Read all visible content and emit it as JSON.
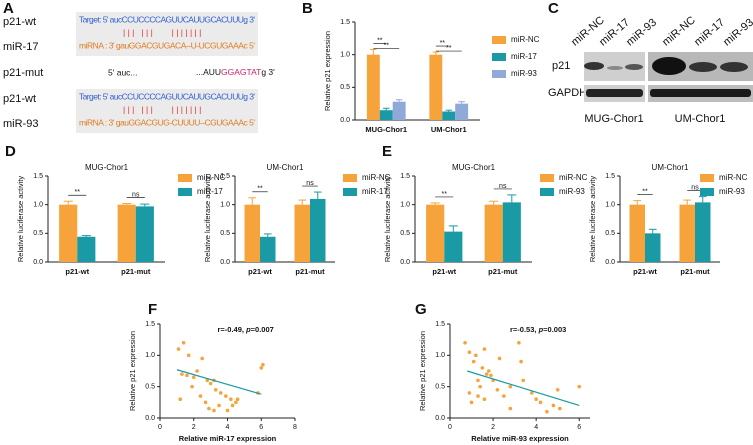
{
  "panel_labels": [
    "A",
    "B",
    "C",
    "D",
    "E",
    "F",
    "G"
  ],
  "alignment": {
    "rows": [
      {
        "label": "p21-wt",
        "text": "Target: 5' aucCCUCCCCAGUUCAUUGCACUUUg 3'"
      },
      {
        "text": "| | |   | | |        | | | | | | |"
      },
      {
        "label": "miR-17",
        "text": "miRNA : 3' gauGGACGUGACA--U-UCGUGAAAc 5'"
      },
      {
        "label": "p21-mut",
        "parts": [
          "5' auc...",
          "...AUU",
          "GGAGTAT",
          "g 3'"
        ]
      },
      {
        "label": "p21-wt",
        "text": "Target: 5' aucCCUCCCCAGUUCAUUGCACUUUg 3'"
      },
      {
        "text": "| | |   | | |        | | | | | | |"
      },
      {
        "label": "miR-93",
        "text": "miRNA : 3' gauGGACGUG-CUUUU--CGUGAAAc 5'"
      }
    ]
  },
  "blot": {
    "lanes": [
      "miR-NC",
      "miR-17",
      "miR-93",
      "miR-NC",
      "miR-17",
      "miR-93"
    ],
    "rows": [
      "p21",
      "GAPDH"
    ],
    "groups": [
      "MUG-Chor1",
      "UM-Chor1"
    ]
  },
  "chart_data": [
    {
      "type": "bar",
      "ylabel": "Relative p21 expression",
      "categories": [
        "MUG-Chor1",
        "UM-Chor1"
      ],
      "series": [
        {
          "name": "miR-NC",
          "color": "#f5a33a",
          "values": [
            1.0,
            1.0
          ],
          "errors": [
            0.08,
            0.04
          ]
        },
        {
          "name": "miR-17",
          "color": "#1a9aa5",
          "values": [
            0.15,
            0.13
          ],
          "errors": [
            0.03,
            0.02
          ]
        },
        {
          "name": "miR-93",
          "color": "#8fa9d8",
          "values": [
            0.28,
            0.25
          ],
          "errors": [
            0.03,
            0.03
          ]
        }
      ],
      "ylim": [
        0,
        1.5
      ],
      "yticks": [
        {
          "value": 0,
          "label": "0.0"
        },
        0.5,
        {
          "value": 1,
          "label": "1.0"
        },
        1.5
      ],
      "annotations": [
        [
          "**",
          "**"
        ],
        [
          "**",
          "**"
        ]
      ]
    },
    {
      "type": "bar",
      "title": "MUG-Chor1",
      "ylabel": "Relative luciferase activity",
      "categories": [
        "p21-wt",
        "p21-mut"
      ],
      "series": [
        {
          "name": "miR-NC",
          "color": "#f5a33a",
          "values": [
            1.0,
            1.0
          ],
          "errors": [
            0.06,
            0.02
          ]
        },
        {
          "name": "miR-17",
          "color": "#1a9aa5",
          "values": [
            0.44,
            0.97
          ],
          "errors": [
            0.02,
            0.04
          ]
        }
      ],
      "ylim": [
        0,
        1.5
      ],
      "yticks": [
        {
          "value": 0,
          "label": "0.0"
        },
        0.5,
        {
          "value": 1,
          "label": "1.0"
        },
        1.5
      ],
      "annotations": [
        [
          "**"
        ],
        [
          "ns"
        ]
      ]
    },
    {
      "type": "bar",
      "title": "UM-Chor1",
      "ylabel": "Relative luciferase activity",
      "categories": [
        "p21-wt",
        "p21-mut"
      ],
      "series": [
        {
          "name": "miR-NC",
          "color": "#f5a33a",
          "values": [
            1.0,
            1.0
          ],
          "errors": [
            0.12,
            0.08
          ]
        },
        {
          "name": "miR-17",
          "color": "#1a9aa5",
          "values": [
            0.44,
            1.1
          ],
          "errors": [
            0.05,
            0.12
          ]
        }
      ],
      "ylim": [
        0,
        1.5
      ],
      "yticks": [
        {
          "value": 0,
          "label": "0.0"
        },
        0.5,
        {
          "value": 1,
          "label": "1.0"
        },
        1.5
      ],
      "annotations": [
        [
          "**"
        ],
        [
          "ns"
        ]
      ]
    },
    {
      "type": "bar",
      "title": "MUG-Chor1",
      "ylabel": "Relative luciferase activity",
      "categories": [
        "p21-wt",
        "p21-mut"
      ],
      "series": [
        {
          "name": "miR-NC",
          "color": "#f5a33a",
          "values": [
            1.0,
            1.0
          ],
          "errors": [
            0.03,
            0.06
          ]
        },
        {
          "name": "miR-93",
          "color": "#1a9aa5",
          "values": [
            0.53,
            1.04
          ],
          "errors": [
            0.1,
            0.13
          ]
        }
      ],
      "ylim": [
        0,
        1.5
      ],
      "yticks": [
        {
          "value": 0,
          "label": "0.0"
        },
        0.5,
        {
          "value": 1,
          "label": "1.0"
        },
        1.5
      ],
      "annotations": [
        [
          "**"
        ],
        [
          "ns"
        ]
      ]
    },
    {
      "type": "bar",
      "title": "UM-Chor1",
      "ylabel": "Relative luciferase activity",
      "categories": [
        "p21-wt",
        "p21-mut"
      ],
      "series": [
        {
          "name": "miR-NC",
          "color": "#f5a33a",
          "values": [
            1.0,
            1.0
          ],
          "errors": [
            0.07,
            0.08
          ]
        },
        {
          "name": "miR-93",
          "color": "#1a9aa5",
          "values": [
            0.5,
            1.04
          ],
          "errors": [
            0.07,
            0.1
          ]
        }
      ],
      "ylim": [
        0,
        1.5
      ],
      "yticks": [
        {
          "value": 0,
          "label": "0.0"
        },
        0.5,
        {
          "value": 1,
          "label": "1.0"
        },
        1.5
      ],
      "annotations": [
        [
          "**"
        ],
        [
          "ns"
        ]
      ]
    },
    {
      "type": "scatter",
      "xlabel": "Relative miR-17 expression",
      "ylabel": "Relative p21 expression",
      "annotation": [
        "r=-0.49, ",
        "p",
        "=0.007"
      ],
      "color": "#f5a33a",
      "x": [
        1.1,
        1.4,
        1.7,
        1.3,
        1.6,
        2.0,
        2.2,
        1.9,
        2.5,
        2.8,
        3.0,
        3.2,
        3.3,
        3.6,
        3.5,
        3.2,
        4.0,
        4.2,
        4.5,
        4.6,
        4.3,
        2.4,
        2.7,
        1.2,
        6.0,
        6.1,
        5.8,
        3.9,
        2.9
      ],
      "y": [
        1.1,
        1.2,
        1.0,
        0.7,
        0.68,
        0.65,
        0.75,
        0.5,
        0.95,
        0.6,
        0.55,
        0.6,
        0.45,
        0.4,
        0.2,
        0.12,
        0.12,
        0.3,
        0.25,
        0.3,
        0.2,
        0.35,
        0.25,
        0.3,
        0.8,
        0.85,
        0.4,
        0.35,
        0.15
      ],
      "trend": {
        "color": "#1a9aa5",
        "x": [
          1,
          6
        ],
        "y": [
          0.77,
          0.38
        ]
      },
      "xlim": [
        0,
        8
      ],
      "xticks": [
        0,
        2,
        4,
        6,
        8
      ],
      "ylim": [
        0,
        1.5
      ],
      "yticks": [
        {
          "value": 0,
          "label": "0.0"
        },
        0.5,
        {
          "value": 1,
          "label": "1.0"
        },
        1.5
      ]
    },
    {
      "type": "scatter",
      "xlabel": "Relative miR-93 expression",
      "ylabel": "Relative p21 expression",
      "annotation": [
        "r=-0.53, ",
        "p",
        "=0.003"
      ],
      "color": "#f5a33a",
      "x": [
        0.7,
        0.9,
        1.2,
        1.6,
        1.5,
        1.8,
        1.7,
        1.9,
        2.0,
        1.1,
        1.3,
        1.4,
        0.9,
        1.0,
        1.3,
        1.6,
        2.2,
        2.5,
        2.8,
        2.8,
        3.2,
        3.4,
        3.3,
        4.0,
        4.2,
        4.5,
        4.8,
        5.1,
        5.0,
        6.0,
        2.3,
        3.8
      ],
      "y": [
        1.2,
        1.05,
        1.0,
        1.1,
        0.8,
        0.75,
        0.7,
        0.68,
        0.6,
        0.9,
        0.6,
        0.5,
        0.4,
        0.25,
        0.35,
        0.3,
        0.45,
        0.35,
        0.5,
        0.15,
        1.2,
        0.6,
        0.9,
        0.3,
        0.25,
        0.1,
        0.2,
        0.15,
        0.45,
        0.5,
        0.95,
        0.4
      ],
      "trend": {
        "color": "#1a9aa5",
        "x": [
          0.8,
          6
        ],
        "y": [
          0.75,
          0.2
        ]
      },
      "xlim": [
        0,
        6.5
      ],
      "xticks": [
        0,
        2,
        4,
        6
      ],
      "ylim": [
        0,
        1.5
      ],
      "yticks": [
        {
          "value": 0,
          "label": "0.0"
        },
        0.5,
        {
          "value": 1,
          "label": "1.0"
        },
        1.5
      ]
    }
  ]
}
